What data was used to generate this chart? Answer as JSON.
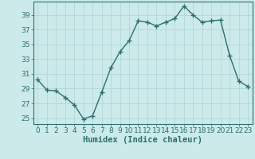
{
  "x": [
    0,
    1,
    2,
    3,
    4,
    5,
    6,
    7,
    8,
    9,
    10,
    11,
    12,
    13,
    14,
    15,
    16,
    17,
    18,
    19,
    20,
    21,
    22,
    23
  ],
  "y": [
    30.2,
    28.8,
    28.7,
    27.8,
    26.8,
    24.9,
    25.3,
    28.5,
    31.8,
    34.0,
    35.5,
    38.2,
    38.0,
    37.5,
    38.0,
    38.5,
    40.2,
    39.0,
    38.0,
    38.2,
    38.3,
    33.5,
    30.0,
    29.3
  ],
  "line_color": "#2d6e6e",
  "marker": "+",
  "marker_size": 4,
  "bg_color": "#cceaea",
  "grid_color": "#b0d8d8",
  "xlabel": "Humidex (Indice chaleur)",
  "xlim": [
    -0.5,
    23.5
  ],
  "ylim": [
    24.2,
    40.8
  ],
  "yticks": [
    25,
    27,
    29,
    31,
    33,
    35,
    37,
    39
  ],
  "xticks": [
    0,
    1,
    2,
    3,
    4,
    5,
    6,
    7,
    8,
    9,
    10,
    11,
    12,
    13,
    14,
    15,
    16,
    17,
    18,
    19,
    20,
    21,
    22,
    23
  ],
  "tick_label_fontsize": 6.5,
  "xlabel_fontsize": 7.5,
  "line_width": 1.0
}
